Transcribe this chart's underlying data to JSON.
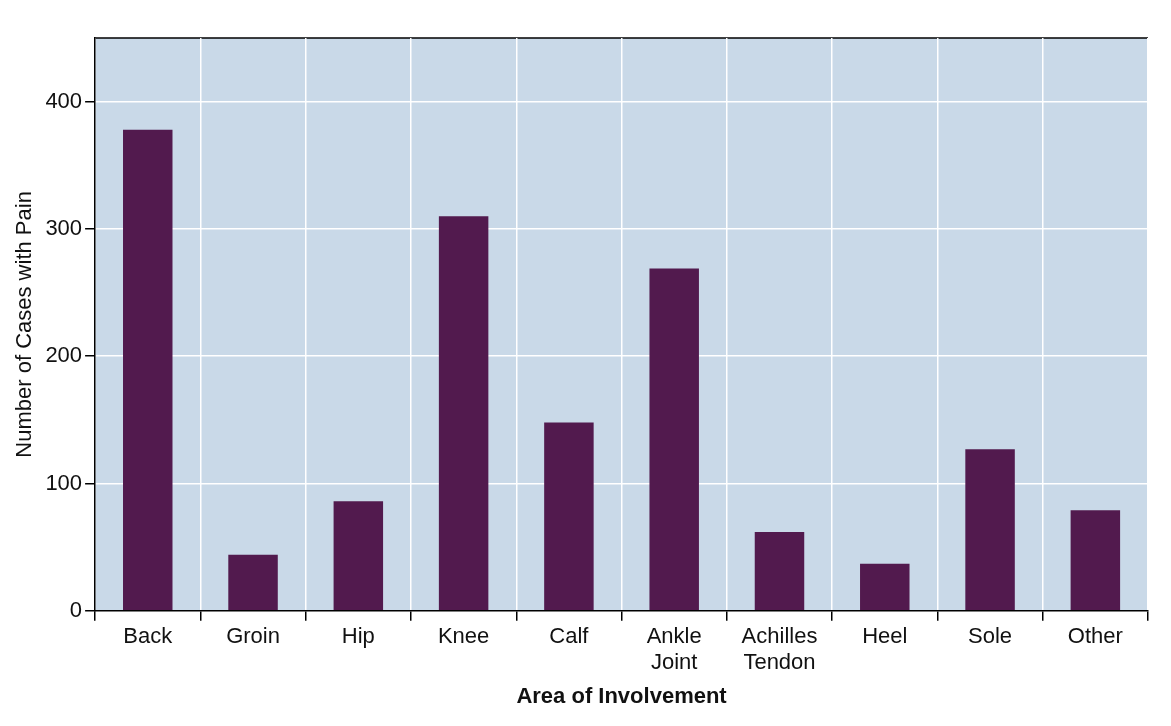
{
  "chart_data": {
    "type": "bar",
    "xlabel": "Area of Involvement",
    "ylabel": "Number of Cases with Pain",
    "categories": [
      "Back",
      "Groin",
      "Hip",
      "Knee",
      "Calf",
      "Ankle Joint",
      "Achilles Tendon",
      "Heel",
      "Sole",
      "Other"
    ],
    "values": [
      378,
      44,
      86,
      310,
      148,
      269,
      62,
      37,
      127,
      79
    ],
    "color": "#521a4e",
    "ylim": [
      0,
      450
    ],
    "yticks": [
      0,
      100,
      200,
      300,
      400
    ],
    "grid": true,
    "legend": false
  }
}
